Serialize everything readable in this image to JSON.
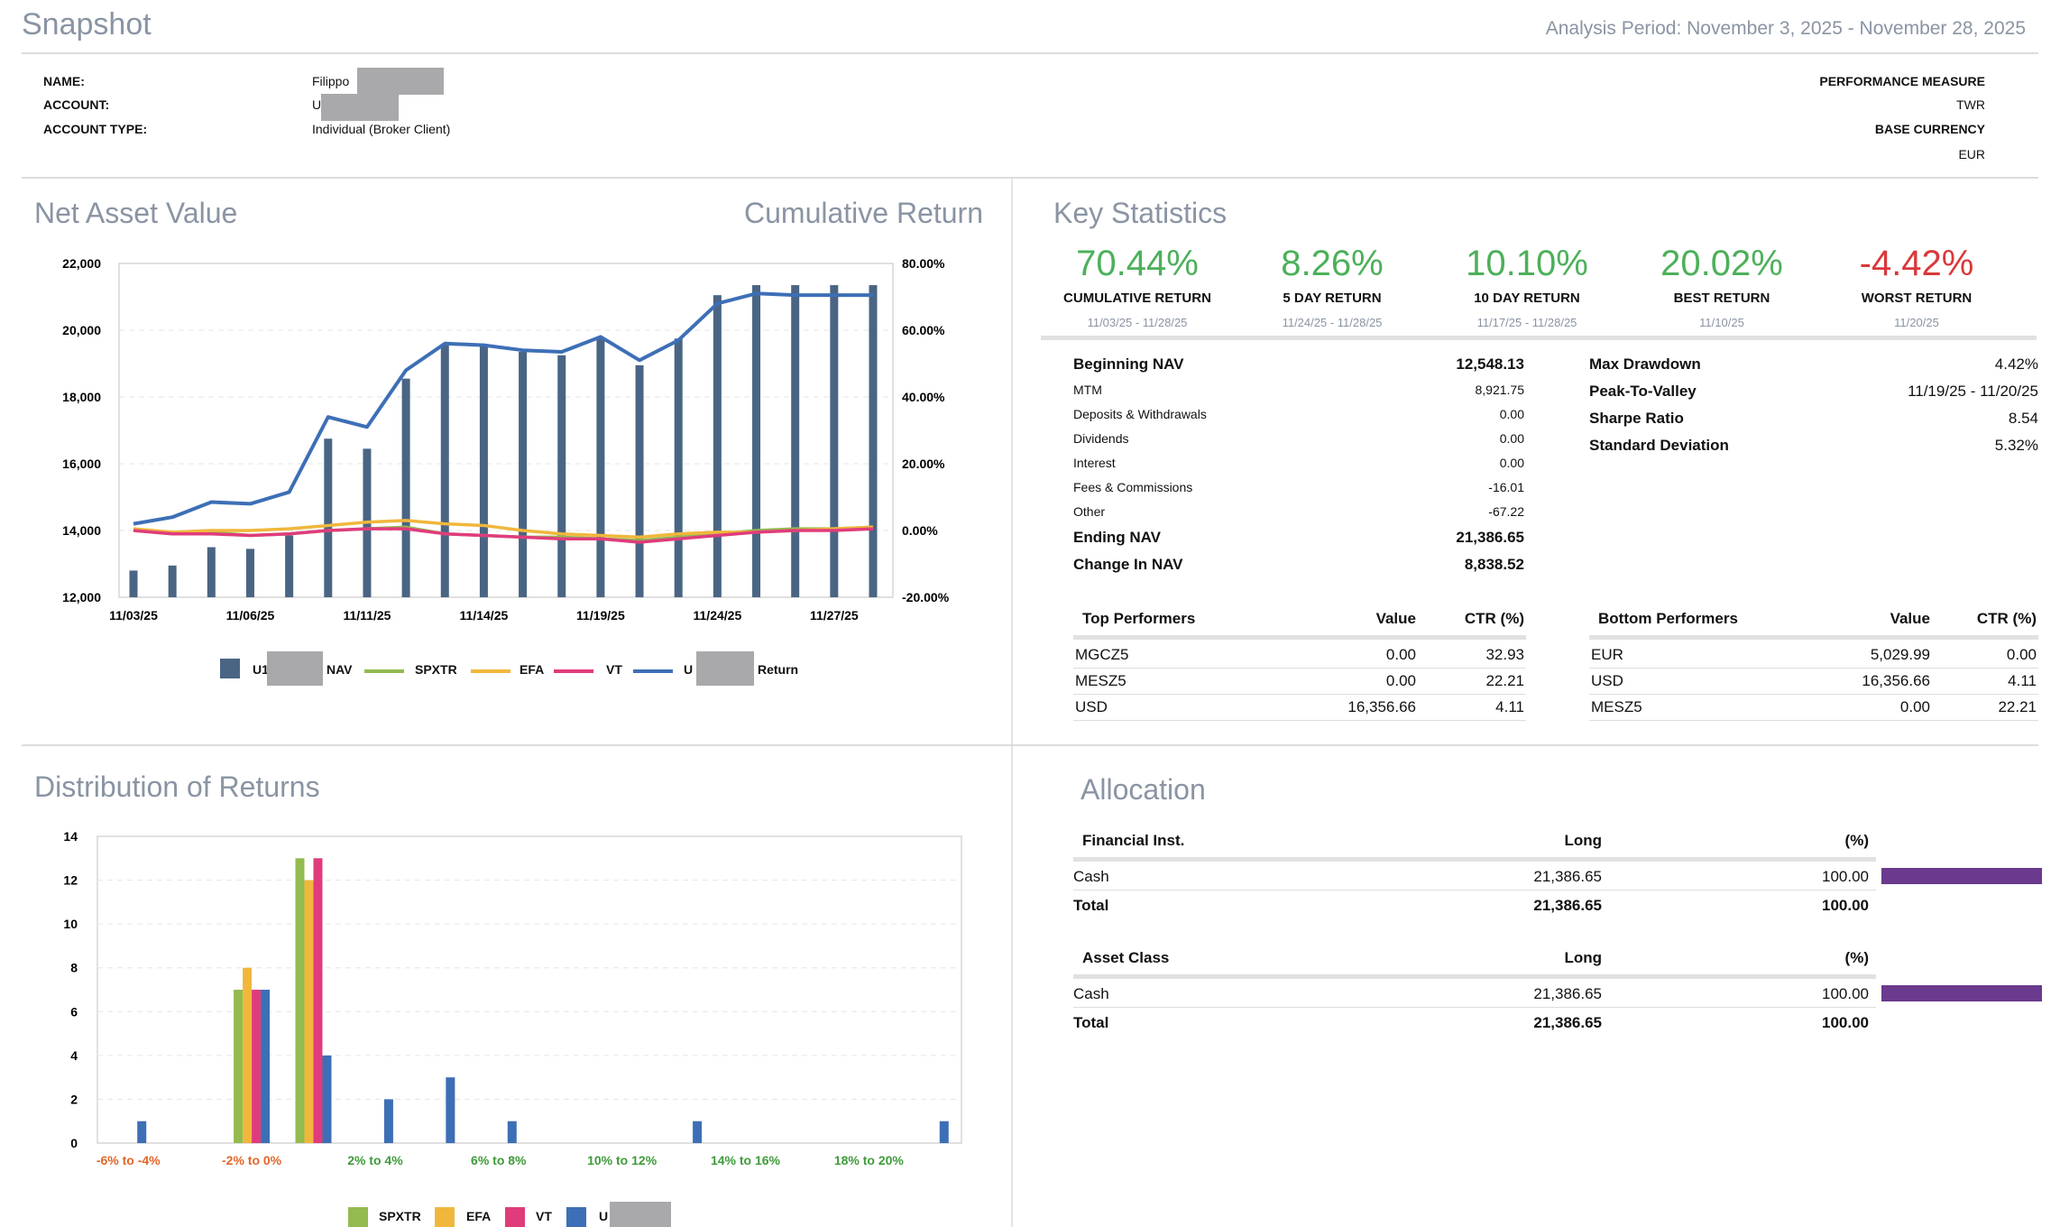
{
  "header": {
    "title": "Snapshot",
    "period": "Analysis Period: November 3, 2025 - November 28, 2025"
  },
  "account": {
    "name_label": "NAME:",
    "name_value": "Filippo",
    "account_label": "ACCOUNT:",
    "account_value": "U",
    "type_label": "ACCOUNT TYPE:",
    "type_value": "Individual (Broker Client)",
    "perf_label": "PERFORMANCE MEASURE",
    "perf_value": "TWR",
    "currency_label": "BASE CURRENCY",
    "currency_value": "EUR"
  },
  "nav_section": {
    "title": "Net Asset Value",
    "title_right": "Cumulative Return",
    "legend": {
      "nav_prefix": "U1",
      "nav_suffix": "NAV",
      "spxtr": "SPXTR",
      "efa": "EFA",
      "vt": "VT",
      "ret_prefix": "U",
      "ret_suffix": "Return"
    }
  },
  "key_stats": {
    "title": "Key Statistics",
    "boxes": [
      {
        "value": "70.44%",
        "label": "CUMULATIVE RETURN",
        "dates": "11/03/25 - 11/28/25"
      },
      {
        "value": "8.26%",
        "label": "5 DAY RETURN",
        "dates": "11/24/25 - 11/28/25"
      },
      {
        "value": "10.10%",
        "label": "10 DAY RETURN",
        "dates": "11/17/25 - 11/28/25"
      },
      {
        "value": "20.02%",
        "label": "BEST RETURN",
        "dates": "11/10/25"
      },
      {
        "value": "-4.42%",
        "label": "WORST RETURN",
        "dates": "11/20/25"
      }
    ],
    "nav_rows": [
      {
        "label": "Beginning NAV",
        "value": "12,548.13",
        "bold": true
      },
      {
        "label": "MTM",
        "value": "8,921.75",
        "bold": false
      },
      {
        "label": "Deposits & Withdrawals",
        "value": "0.00",
        "bold": false
      },
      {
        "label": "Dividends",
        "value": "0.00",
        "bold": false
      },
      {
        "label": "Interest",
        "value": "0.00",
        "bold": false
      },
      {
        "label": "Fees & Commissions",
        "value": "-16.01",
        "bold": false
      },
      {
        "label": "Other",
        "value": "-67.22",
        "bold": false
      },
      {
        "label": "Ending NAV",
        "value": "21,386.65",
        "bold": true
      },
      {
        "label": "Change In NAV",
        "value": "8,838.52",
        "bold": true
      }
    ],
    "risk_rows": [
      {
        "label": "Max Drawdown",
        "value": "4.42%"
      },
      {
        "label": "Peak-To-Valley",
        "value": "11/19/25 - 11/20/25"
      },
      {
        "label": "Sharpe Ratio",
        "value": "8.54"
      },
      {
        "label": "Standard Deviation",
        "value": "5.32%"
      }
    ],
    "top": {
      "headers": [
        "Top Performers",
        "Value",
        "CTR (%)"
      ],
      "rows": [
        [
          "MGCZ5",
          "0.00",
          "32.93"
        ],
        [
          "MESZ5",
          "0.00",
          "22.21"
        ],
        [
          "USD",
          "16,356.66",
          "4.11"
        ]
      ]
    },
    "bottom": {
      "headers": [
        "Bottom Performers",
        "Value",
        "CTR (%)"
      ],
      "rows": [
        [
          "EUR",
          "5,029.99",
          "0.00"
        ],
        [
          "USD",
          "16,356.66",
          "4.11"
        ],
        [
          "MESZ5",
          "0.00",
          "22.21"
        ]
      ]
    }
  },
  "distribution": {
    "title": "Distribution of Returns",
    "legend": {
      "spxtr": "SPXTR",
      "efa": "EFA",
      "vt": "VT",
      "acct": "U"
    }
  },
  "allocation": {
    "title": "Allocation",
    "fin": {
      "headers": [
        "Financial Inst.",
        "Long",
        "(%)"
      ],
      "row": [
        "Cash",
        "21,386.65",
        "100.00"
      ],
      "pct": 100,
      "total": [
        "Total",
        "21,386.65",
        "100.00"
      ]
    },
    "asset": {
      "headers": [
        "Asset Class",
        "Long",
        "(%)"
      ],
      "row": [
        "Cash",
        "21,386.65",
        "100.00"
      ],
      "pct": 100,
      "total": [
        "Total",
        "21,386.65",
        "100.00"
      ]
    }
  },
  "colors": {
    "nav": "#4a6584",
    "spxtr": "#93bb50",
    "efa": "#f0b73c",
    "vt": "#e03c7c",
    "acct": "#3d6fb6",
    "purple": "#6a3a8e"
  },
  "chart_data": [
    {
      "type": "bar",
      "name_hint": "nav-chart",
      "categories": [
        "11/03/25",
        "11/04/25",
        "11/05/25",
        "11/06/25",
        "11/07/25",
        "11/10/25",
        "11/11/25",
        "11/12/25",
        "11/13/25",
        "11/14/25",
        "11/17/25",
        "11/18/25",
        "11/19/25",
        "11/20/25",
        "11/21/25",
        "11/24/25",
        "11/25/25",
        "11/26/25",
        "11/27/25",
        "11/28/25"
      ],
      "x_tick_labels": [
        "11/03/25",
        "11/06/25",
        "11/11/25",
        "11/14/25",
        "11/19/25",
        "11/24/25",
        "11/27/25"
      ],
      "y_ticks": [
        "12,000",
        "14,000",
        "16,000",
        "18,000",
        "20,000",
        "22,000"
      ],
      "y2_ticks": [
        "-20.00%",
        "0.00%",
        "20.00%",
        "40.00%",
        "60.00%",
        "80.00%"
      ],
      "ylim": [
        12000,
        22000
      ],
      "y2lim": [
        -20,
        80
      ],
      "nav_values": [
        12800,
        12950,
        13500,
        13450,
        13850,
        16750,
        16450,
        18550,
        19550,
        19500,
        19350,
        19250,
        19750,
        18950,
        19750,
        21050,
        21350,
        21350,
        21350,
        21350
      ],
      "series": [
        {
          "name": "SPXTR",
          "values": [
            0,
            -1,
            -0.5,
            -1.5,
            -1,
            0,
            0.5,
            1,
            -1,
            -1.5,
            -2,
            -2,
            -2.5,
            -3,
            -2,
            -1,
            0,
            0.5,
            0.5,
            1
          ]
        },
        {
          "name": "EFA",
          "values": [
            0.5,
            -0.5,
            0,
            0,
            0.5,
            1.5,
            2.5,
            3,
            2,
            1.5,
            0,
            -1,
            -1.5,
            -2,
            -1,
            -0.5,
            -0.5,
            0,
            0.5,
            1
          ]
        },
        {
          "name": "VT",
          "values": [
            0,
            -1,
            -1,
            -1.5,
            -1,
            0,
            0.5,
            0.5,
            -1,
            -1.5,
            -2,
            -2.5,
            -2.5,
            -3.5,
            -2.5,
            -1.5,
            -0.5,
            0,
            0,
            0.5
          ]
        },
        {
          "name": "Return",
          "values": [
            2,
            4,
            8.5,
            8,
            11.5,
            34,
            31,
            48,
            56,
            55.5,
            54,
            53.5,
            58,
            51,
            57,
            68,
            71,
            70.5,
            70.5,
            70.5
          ]
        }
      ]
    },
    {
      "type": "bar",
      "name_hint": "distribution-chart",
      "x_tick_labels": [
        "-6% to -4%",
        "-2% to 0%",
        "2% to 4%",
        "6% to 8%",
        "10% to 12%",
        "14% to 16%",
        "18% to 20%"
      ],
      "x_tick_colors": [
        "#e0662a",
        "#e0662a",
        "#3f9b3a",
        "#3f9b3a",
        "#3f9b3a",
        "#3f9b3a",
        "#3f9b3a"
      ],
      "y_ticks": [
        "0",
        "2",
        "4",
        "6",
        "8",
        "10",
        "12",
        "14"
      ],
      "ylim": [
        0,
        14
      ],
      "bins": 14,
      "series": [
        {
          "name": "SPXTR",
          "values": [
            0,
            0,
            7,
            13,
            0,
            0,
            0,
            0,
            0,
            0,
            0,
            0,
            0,
            0
          ]
        },
        {
          "name": "EFA",
          "values": [
            0,
            0,
            8,
            12,
            0,
            0,
            0,
            0,
            0,
            0,
            0,
            0,
            0,
            0
          ]
        },
        {
          "name": "VT",
          "values": [
            0,
            0,
            7,
            13,
            0,
            0,
            0,
            0,
            0,
            0,
            0,
            0,
            0,
            0
          ]
        },
        {
          "name": "U",
          "values": [
            1,
            0,
            7,
            4,
            2,
            3,
            1,
            0,
            0,
            1,
            0,
            0,
            0,
            1
          ]
        }
      ]
    }
  ]
}
